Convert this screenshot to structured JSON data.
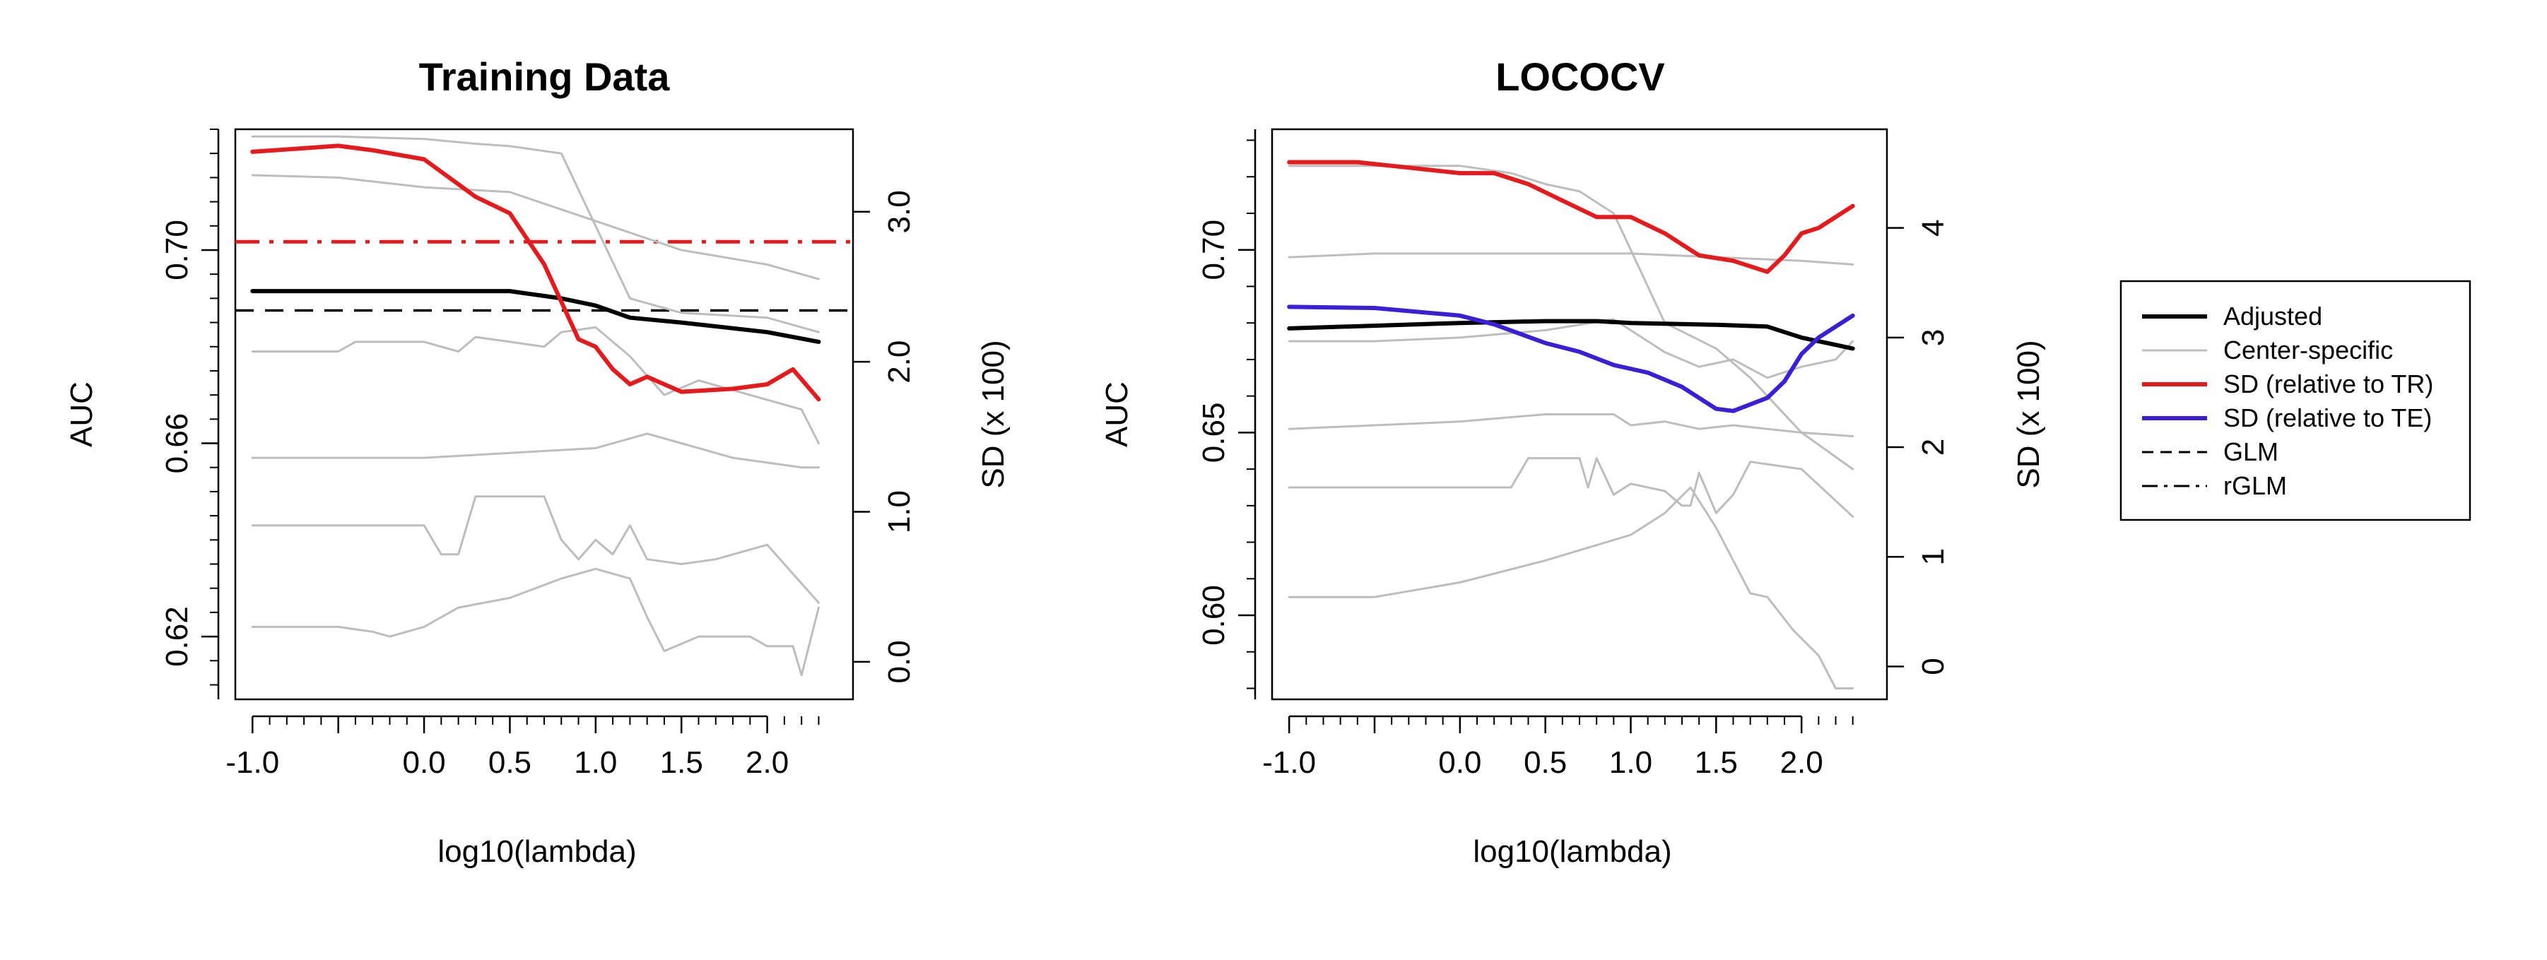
{
  "legend": {
    "entries": [
      {
        "label": "Adjusted",
        "color": "#000000",
        "style": "solid",
        "weight": "thick"
      },
      {
        "label": "Center-specific",
        "color": "#bdbdbd",
        "style": "solid",
        "weight": "thin"
      },
      {
        "label": "SD (relative to TR)",
        "color": "#e41a1c",
        "style": "solid",
        "weight": "thick"
      },
      {
        "label": "SD (relative to TE)",
        "color": "#3a1fd6",
        "style": "solid",
        "weight": "thick"
      },
      {
        "label": "GLM",
        "color": "#000000",
        "style": "dashed",
        "weight": "thin"
      },
      {
        "label": "rGLM",
        "color": "#000000",
        "style": "dashdot",
        "weight": "thin"
      }
    ]
  },
  "chart_data": [
    {
      "id": "training",
      "type": "line",
      "title": "Training Data",
      "xlabel": "log10(lambda)",
      "ylabel": "AUC",
      "y2label": "SD (x 100)",
      "xlim": [
        -1.1,
        2.5
      ],
      "ylim": [
        0.607,
        0.725
      ],
      "y2lim": [
        -0.25,
        3.55
      ],
      "xticks": [
        -1.0,
        -0.5,
        0.0,
        0.5,
        1.0,
        1.5,
        2.0
      ],
      "xtick_labels": [
        "-1.0",
        "",
        "0.0",
        "0.5",
        "1.0",
        "1.5",
        "2.0"
      ],
      "yticks": [
        0.62,
        0.66,
        0.7
      ],
      "ytick_labels": [
        "0.62",
        "0.66",
        "0.70"
      ],
      "y2ticks": [
        0.0,
        1.0,
        2.0,
        3.0
      ],
      "y2tick_labels": [
        "0.0",
        "1.0",
        "2.0",
        "3.0"
      ],
      "hlines": [
        {
          "name": "rGLM",
          "axis": "sd",
          "value": 2.8,
          "color": "#e41a1c",
          "style": "dashdot"
        },
        {
          "name": "GLM",
          "axis": "auc",
          "value": 0.6875,
          "color": "#000000",
          "style": "dashed"
        }
      ],
      "series": [
        {
          "name": "Adjusted",
          "axis": "auc",
          "color": "#000000",
          "width": 6,
          "x": [
            -1.0,
            0.0,
            0.5,
            0.8,
            1.0,
            1.2,
            1.5,
            2.0,
            2.3
          ],
          "y": [
            0.6915,
            0.6915,
            0.6915,
            0.69,
            0.6885,
            0.686,
            0.685,
            0.683,
            0.681
          ]
        },
        {
          "name": "SD (relative to TR)",
          "axis": "sd",
          "color": "#e41a1c",
          "width": 6,
          "x": [
            -1.0,
            -0.5,
            -0.3,
            0.0,
            0.3,
            0.5,
            0.7,
            0.9,
            1.0,
            1.1,
            1.2,
            1.3,
            1.5,
            1.8,
            2.0,
            2.15,
            2.3
          ],
          "y": [
            3.4,
            3.44,
            3.41,
            3.35,
            3.1,
            2.99,
            2.65,
            2.15,
            2.1,
            1.95,
            1.85,
            1.9,
            1.8,
            1.82,
            1.85,
            1.95,
            1.75
          ]
        },
        {
          "name": "Center-specific",
          "axis": "auc",
          "color": "#bdbdbd",
          "width": 3,
          "x": [
            -1.0,
            -0.5,
            0.0,
            0.3,
            0.5,
            0.8,
            1.0,
            1.2,
            1.5,
            2.0,
            2.3
          ],
          "y": [
            0.7235,
            0.7235,
            0.723,
            0.722,
            0.7215,
            0.72,
            0.705,
            0.69,
            0.687,
            0.686,
            0.683
          ]
        },
        {
          "name": "Center-specific",
          "axis": "auc",
          "color": "#bdbdbd",
          "width": 3,
          "x": [
            -1.0,
            -0.5,
            0.0,
            0.5,
            1.0,
            1.5,
            2.0,
            2.3
          ],
          "y": [
            0.7155,
            0.715,
            0.713,
            0.712,
            0.706,
            0.7,
            0.697,
            0.694
          ]
        },
        {
          "name": "Center-specific",
          "axis": "auc",
          "color": "#bdbdbd",
          "width": 3,
          "x": [
            -1.0,
            -0.5,
            -0.4,
            0.0,
            0.2,
            0.3,
            0.5,
            0.7,
            0.8,
            1.0,
            1.2,
            1.4,
            1.6,
            1.8,
            2.0,
            2.2,
            2.3
          ],
          "y": [
            0.679,
            0.679,
            0.681,
            0.681,
            0.679,
            0.682,
            0.681,
            0.68,
            0.683,
            0.684,
            0.678,
            0.67,
            0.673,
            0.671,
            0.669,
            0.667,
            0.66
          ]
        },
        {
          "name": "Center-specific",
          "axis": "auc",
          "color": "#bdbdbd",
          "width": 3,
          "x": [
            -1.0,
            0.0,
            0.5,
            1.0,
            1.3,
            1.5,
            1.8,
            2.0,
            2.2,
            2.3
          ],
          "y": [
            0.657,
            0.657,
            0.658,
            0.659,
            0.662,
            0.66,
            0.657,
            0.656,
            0.655,
            0.655
          ]
        },
        {
          "name": "Center-specific",
          "axis": "auc",
          "color": "#bdbdbd",
          "width": 3,
          "x": [
            -1.0,
            0.0,
            0.1,
            0.2,
            0.3,
            0.4,
            0.7,
            0.8,
            0.9,
            1.0,
            1.1,
            1.2,
            1.3,
            1.5,
            1.7,
            2.0,
            2.3
          ],
          "y": [
            0.643,
            0.643,
            0.637,
            0.637,
            0.649,
            0.649,
            0.649,
            0.64,
            0.636,
            0.64,
            0.637,
            0.643,
            0.636,
            0.635,
            0.636,
            0.639,
            0.627
          ]
        },
        {
          "name": "Center-specific",
          "axis": "auc",
          "color": "#bdbdbd",
          "width": 3,
          "x": [
            -1.0,
            -0.5,
            -0.3,
            -0.2,
            0.0,
            0.2,
            0.5,
            0.8,
            1.0,
            1.2,
            1.3,
            1.4,
            1.6,
            1.9,
            2.0,
            2.15,
            2.2,
            2.3
          ],
          "y": [
            0.622,
            0.622,
            0.621,
            0.62,
            0.622,
            0.626,
            0.628,
            0.632,
            0.634,
            0.632,
            0.624,
            0.617,
            0.62,
            0.62,
            0.618,
            0.618,
            0.612,
            0.626
          ]
        }
      ]
    },
    {
      "id": "lococv",
      "type": "line",
      "title": "LOCOCV",
      "xlabel": "log10(lambda)",
      "ylabel": "AUC",
      "y2label": "SD (x 100)",
      "xlim": [
        -1.1,
        2.5
      ],
      "ylim": [
        0.577,
        0.733
      ],
      "y2lim": [
        -0.3,
        4.9
      ],
      "xticks": [
        -1.0,
        -0.5,
        0.0,
        0.5,
        1.0,
        1.5,
        2.0
      ],
      "xtick_labels": [
        "-1.0",
        "",
        "0.0",
        "0.5",
        "1.0",
        "1.5",
        "2.0"
      ],
      "yticks": [
        0.6,
        0.65,
        0.7
      ],
      "ytick_labels": [
        "0.60",
        "0.65",
        "0.70"
      ],
      "y2ticks": [
        0,
        1,
        2,
        3,
        4
      ],
      "y2tick_labels": [
        "0",
        "1",
        "2",
        "3",
        "4"
      ],
      "hlines": [],
      "series": [
        {
          "name": "Adjusted",
          "axis": "auc",
          "color": "#000000",
          "width": 6,
          "x": [
            -1.0,
            0.0,
            0.5,
            0.8,
            1.0,
            1.5,
            1.8,
            2.0,
            2.2,
            2.3
          ],
          "y": [
            0.6785,
            0.68,
            0.6805,
            0.6805,
            0.68,
            0.6795,
            0.679,
            0.676,
            0.674,
            0.673
          ]
        },
        {
          "name": "SD (relative to TR)",
          "axis": "sd",
          "color": "#e41a1c",
          "width": 6,
          "x": [
            -1.0,
            -0.6,
            -0.3,
            0.0,
            0.2,
            0.4,
            0.6,
            0.8,
            1.0,
            1.2,
            1.3,
            1.4,
            1.6,
            1.8,
            1.9,
            2.0,
            2.1,
            2.3
          ],
          "y": [
            4.6,
            4.6,
            4.55,
            4.5,
            4.5,
            4.4,
            4.25,
            4.1,
            4.1,
            3.95,
            3.85,
            3.75,
            3.7,
            3.6,
            3.75,
            3.95,
            4.0,
            4.2
          ]
        },
        {
          "name": "SD (relative to TE)",
          "axis": "sd",
          "color": "#3a1fd6",
          "width": 6,
          "x": [
            -1.0,
            -0.5,
            0.0,
            0.2,
            0.5,
            0.7,
            0.9,
            1.1,
            1.3,
            1.5,
            1.6,
            1.8,
            1.9,
            2.0,
            2.1,
            2.3
          ],
          "y": [
            3.28,
            3.27,
            3.2,
            3.12,
            2.95,
            2.87,
            2.75,
            2.68,
            2.55,
            2.35,
            2.33,
            2.45,
            2.6,
            2.85,
            3.0,
            3.2
          ]
        },
        {
          "name": "Center-specific",
          "axis": "auc",
          "color": "#bdbdbd",
          "width": 3,
          "x": [
            -1.0,
            -0.5,
            0.0,
            0.3,
            0.5,
            0.7,
            0.9,
            1.0,
            1.2,
            1.5,
            1.7,
            2.0,
            2.3
          ],
          "y": [
            0.723,
            0.723,
            0.723,
            0.721,
            0.718,
            0.716,
            0.71,
            0.7,
            0.68,
            0.673,
            0.665,
            0.65,
            0.64
          ]
        },
        {
          "name": "Center-specific",
          "axis": "auc",
          "color": "#bdbdbd",
          "width": 3,
          "x": [
            -1.0,
            -0.5,
            0.0,
            0.5,
            1.0,
            1.5,
            2.0,
            2.3
          ],
          "y": [
            0.698,
            0.699,
            0.699,
            0.699,
            0.699,
            0.698,
            0.697,
            0.696
          ]
        },
        {
          "name": "Center-specific",
          "axis": "auc",
          "color": "#bdbdbd",
          "width": 3,
          "x": [
            -1.0,
            -0.5,
            0.0,
            0.5,
            0.9,
            1.0,
            1.2,
            1.4,
            1.6,
            1.8,
            2.0,
            2.2,
            2.3
          ],
          "y": [
            0.675,
            0.675,
            0.676,
            0.678,
            0.681,
            0.678,
            0.672,
            0.668,
            0.67,
            0.665,
            0.668,
            0.67,
            0.675
          ]
        },
        {
          "name": "Center-specific",
          "axis": "auc",
          "color": "#bdbdbd",
          "width": 3,
          "x": [
            -1.0,
            0.0,
            0.5,
            0.9,
            1.0,
            1.2,
            1.4,
            1.6,
            1.8,
            2.0,
            2.3
          ],
          "y": [
            0.651,
            0.653,
            0.655,
            0.655,
            0.652,
            0.653,
            0.651,
            0.652,
            0.651,
            0.65,
            0.649
          ]
        },
        {
          "name": "Center-specific",
          "axis": "auc",
          "color": "#bdbdbd",
          "width": 3,
          "x": [
            -1.0,
            0.0,
            0.3,
            0.4,
            0.7,
            0.75,
            0.8,
            0.9,
            1.0,
            1.2,
            1.3,
            1.35,
            1.4,
            1.5,
            1.6,
            1.7,
            2.0,
            2.3
          ],
          "y": [
            0.635,
            0.635,
            0.635,
            0.643,
            0.643,
            0.635,
            0.643,
            0.633,
            0.636,
            0.634,
            0.63,
            0.63,
            0.639,
            0.628,
            0.633,
            0.642,
            0.64,
            0.627
          ]
        },
        {
          "name": "Center-specific",
          "axis": "auc",
          "color": "#bdbdbd",
          "width": 3,
          "x": [
            -1.0,
            -0.5,
            0.0,
            0.5,
            1.0,
            1.2,
            1.35,
            1.5,
            1.7,
            1.8,
            1.95,
            2.1,
            2.2,
            2.3
          ],
          "y": [
            0.605,
            0.605,
            0.609,
            0.615,
            0.622,
            0.628,
            0.635,
            0.624,
            0.606,
            0.605,
            0.596,
            0.589,
            0.58,
            0.58
          ]
        }
      ]
    }
  ]
}
